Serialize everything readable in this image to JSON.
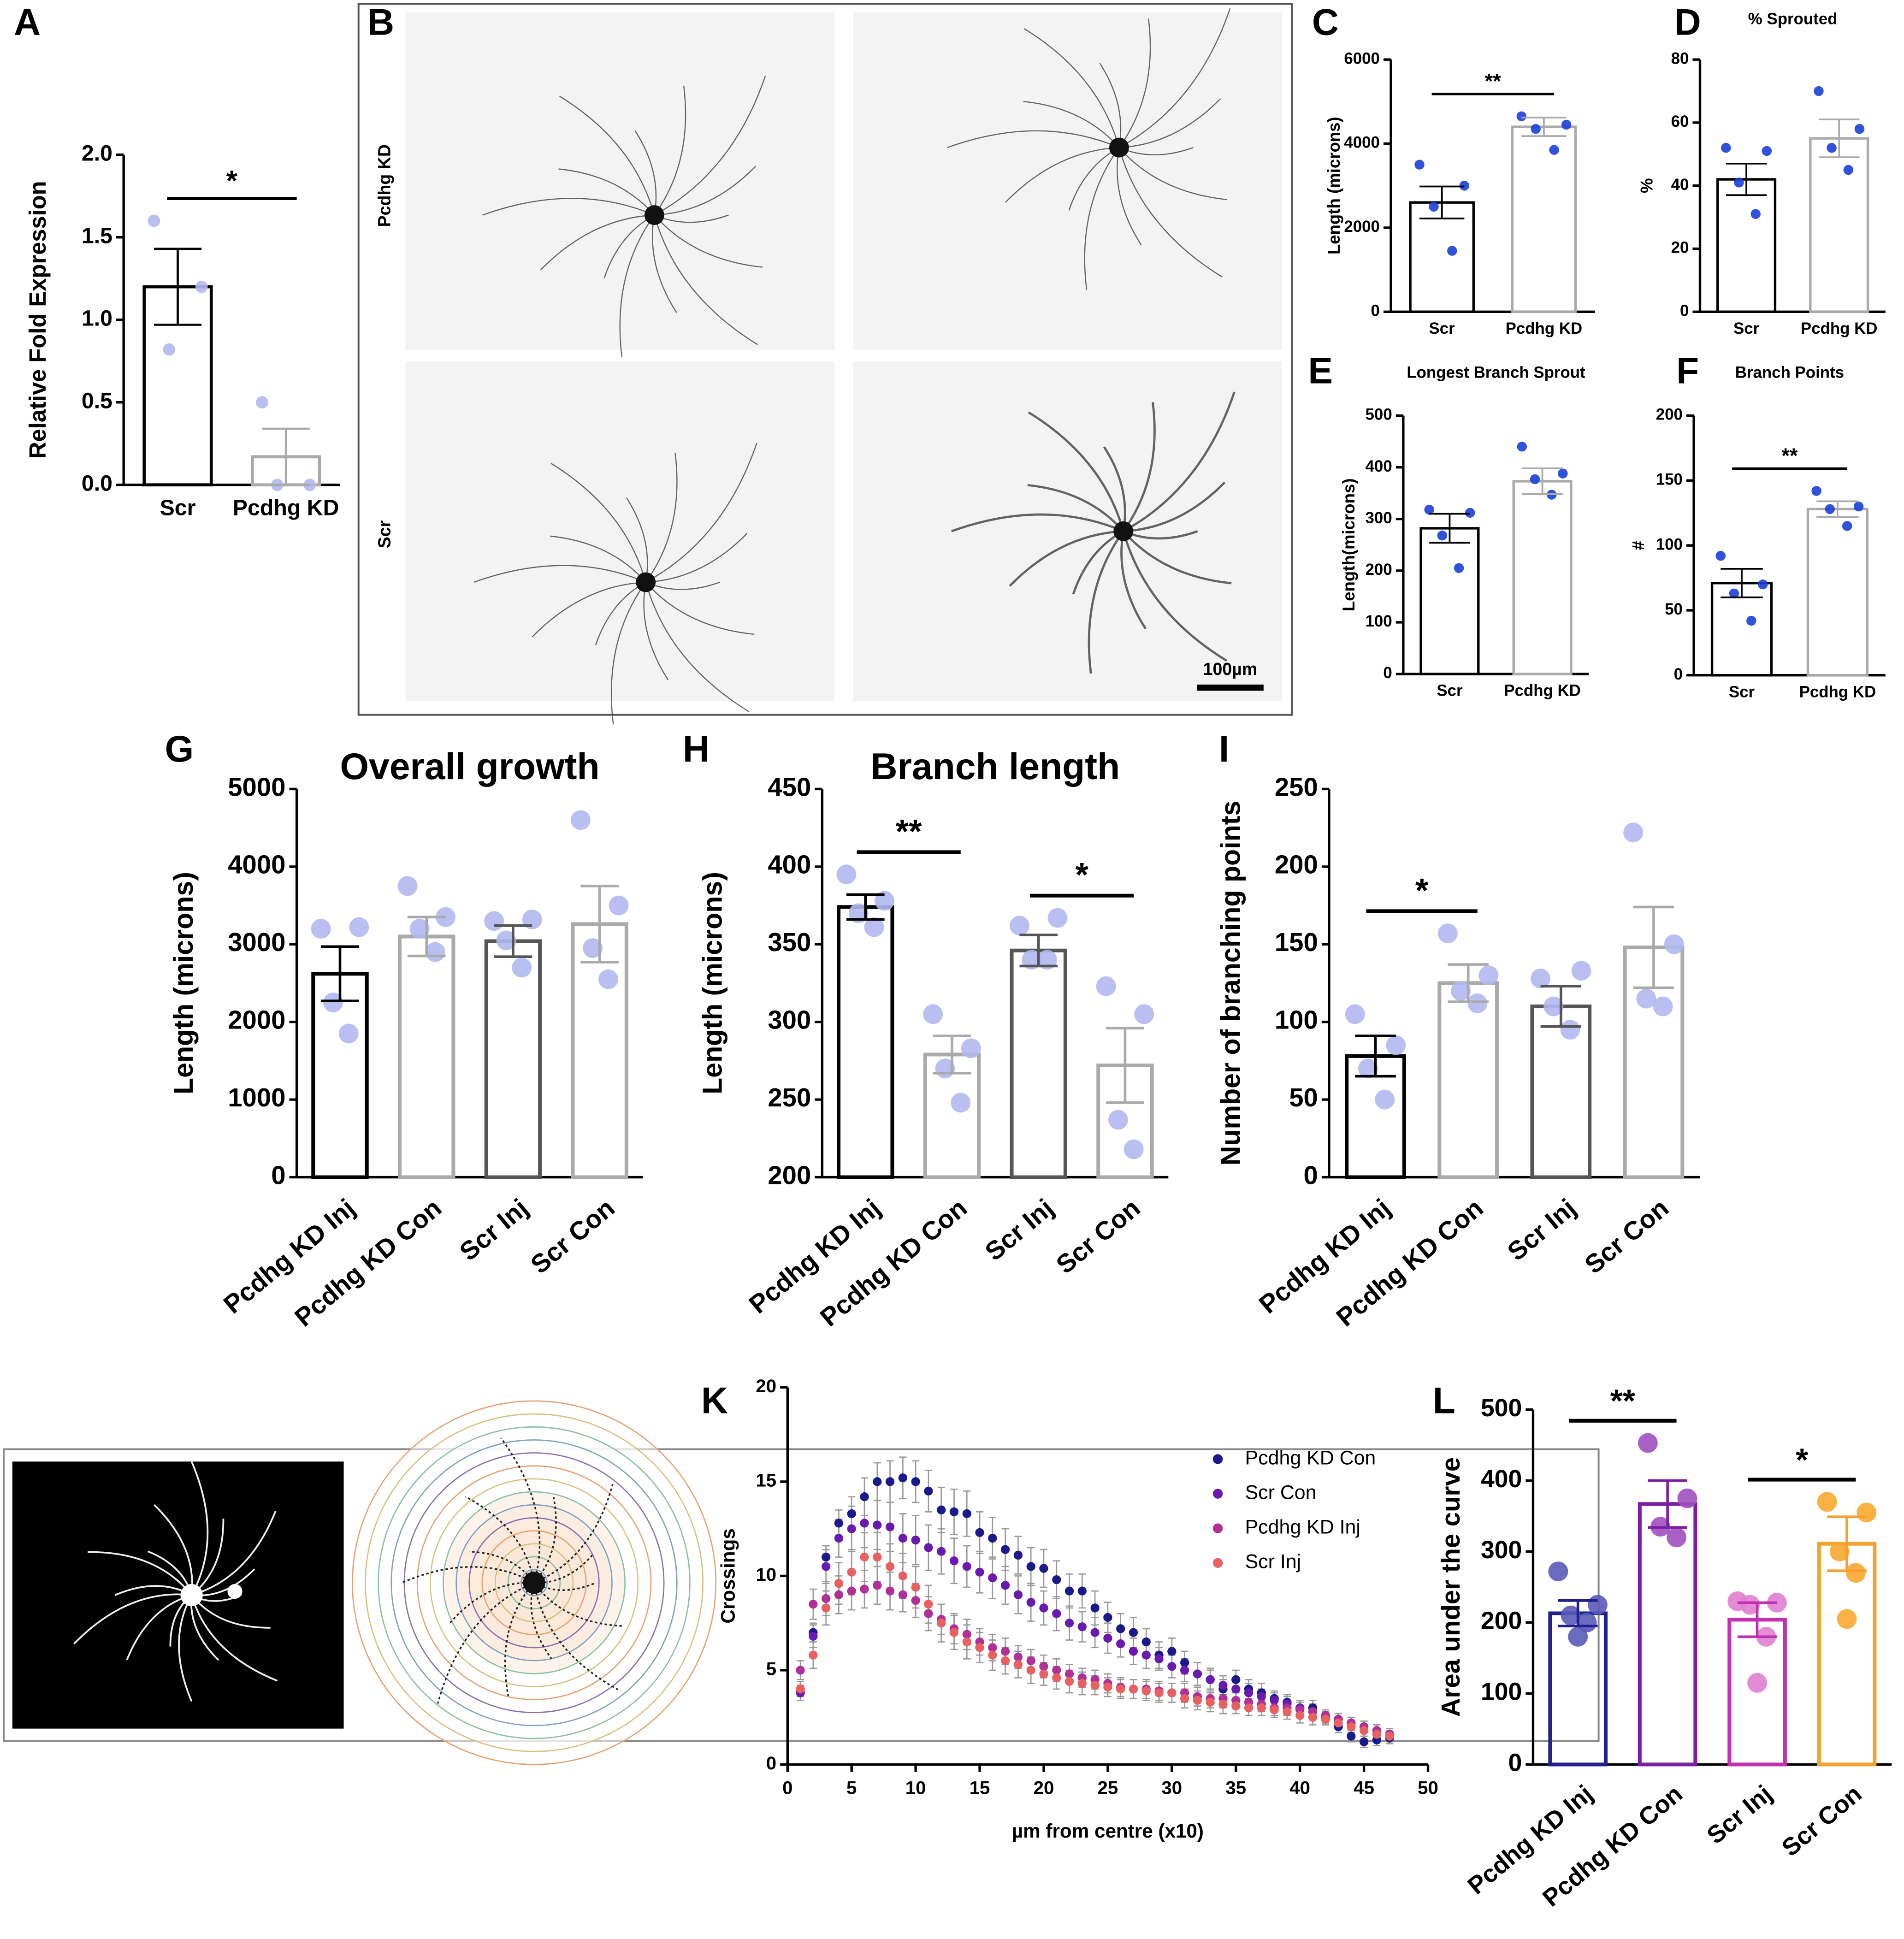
{
  "chart_data": [
    {
      "type": "bar",
      "panel": "A",
      "ylabel": "Relative Fold Expression",
      "categories": [
        "Scr",
        "Pcdhg KD"
      ],
      "values": [
        1.2,
        0.17
      ],
      "errors": [
        0.23,
        0.17
      ],
      "points": [
        [
          1.6,
          1.2,
          0.82
        ],
        [
          0.5,
          0.0,
          0.0
        ]
      ],
      "colors": [
        "#000000",
        "#aaaaaa"
      ],
      "point_colors": [
        "#b3b8f0",
        "#b3b8f0"
      ],
      "ylim": [
        0,
        2
      ],
      "yticks": [
        {
          "value": 0,
          "label": "0.0"
        },
        0.5,
        {
          "value": 1,
          "label": "1.0"
        },
        1.5,
        {
          "value": 2,
          "label": "2.0"
        }
      ],
      "significance": [
        {
          "label": "*",
          "bars": [
            0,
            1
          ]
        }
      ]
    },
    {
      "type": "image",
      "panel": "B",
      "labels": [
        "Pcdhg KD",
        "Scr"
      ],
      "scale_bar": "100µm"
    },
    {
      "type": "bar",
      "panel": "C",
      "ylabel": "Length (microns)",
      "categories": [
        "Scr",
        "Pcdhg KD"
      ],
      "values": [
        2600,
        4400
      ],
      "errors": [
        380,
        220
      ],
      "points": [
        [
          3500,
          3000,
          2500,
          1450
        ],
        [
          4650,
          4450,
          4350,
          3850
        ]
      ],
      "colors": [
        "#000000",
        "#aaaaaa"
      ],
      "point_colors": [
        "#1a3fd8",
        "#1a3fd8"
      ],
      "ylim": [
        0,
        6000
      ],
      "yticks": [
        0,
        2000,
        4000,
        6000
      ],
      "significance": [
        {
          "label": "**",
          "bars": [
            0,
            1
          ]
        }
      ]
    },
    {
      "type": "bar",
      "panel": "D",
      "title": "% Sprouted",
      "ylabel": "%",
      "categories": [
        "Scr",
        "Pcdhg KD"
      ],
      "values": [
        42,
        55
      ],
      "errors": [
        5,
        6
      ],
      "points": [
        [
          52,
          51,
          41,
          31
        ],
        [
          70,
          58,
          52,
          45
        ]
      ],
      "colors": [
        "#000000",
        "#aaaaaa"
      ],
      "point_colors": [
        "#1a3fd8",
        "#1a3fd8"
      ],
      "ylim": [
        0,
        80
      ],
      "yticks": [
        0,
        20,
        40,
        60,
        80
      ],
      "significance": []
    },
    {
      "type": "bar",
      "panel": "E",
      "title": "Longest Branch Sprout",
      "ylabel": "Length(microns)",
      "categories": [
        "Scr",
        "Pcdhg KD"
      ],
      "values": [
        282,
        373
      ],
      "errors": [
        28,
        25
      ],
      "points": [
        [
          318,
          312,
          268,
          205
        ],
        [
          440,
          388,
          377,
          347
        ]
      ],
      "colors": [
        "#000000",
        "#aaaaaa"
      ],
      "point_colors": [
        "#1a3fd8",
        "#1a3fd8"
      ],
      "ylim": [
        0,
        500
      ],
      "yticks": [
        0,
        100,
        200,
        300,
        400,
        500
      ],
      "significance": []
    },
    {
      "type": "bar",
      "panel": "F",
      "title": "Branch Points",
      "ylabel": "#",
      "categories": [
        "Scr",
        "Pcdhg KD"
      ],
      "values": [
        71,
        128
      ],
      "errors": [
        11,
        6
      ],
      "points": [
        [
          92,
          70,
          63,
          42
        ],
        [
          142,
          130,
          128,
          115
        ]
      ],
      "colors": [
        "#000000",
        "#aaaaaa"
      ],
      "point_colors": [
        "#1a3fd8",
        "#1a3fd8"
      ],
      "ylim": [
        0,
        200
      ],
      "yticks": [
        0,
        50,
        100,
        150,
        200
      ],
      "significance": [
        {
          "label": "**",
          "bars": [
            0,
            1
          ]
        }
      ]
    },
    {
      "type": "bar",
      "panel": "G",
      "title": "Overall growth",
      "ylabel": "Length (microns)",
      "categories": [
        "Pcdhg KD Inj",
        "Pcdhg KD Con",
        "Scr Inj",
        "Scr Con"
      ],
      "values": [
        2620,
        3100,
        3040,
        3260
      ],
      "errors": [
        350,
        250,
        200,
        490
      ],
      "points": [
        [
          3200,
          3220,
          2250,
          1850
        ],
        [
          3750,
          3350,
          3200,
          2900
        ],
        [
          3300,
          3320,
          3050,
          2700
        ],
        [
          4600,
          3500,
          2950,
          2550
        ]
      ],
      "colors": [
        "#000000",
        "#aaaaaa",
        "#555555",
        "#aaaaaa"
      ],
      "point_colors": [
        "#b3b8f0",
        "#b3b8f0",
        "#b3b8f0",
        "#b3b8f0"
      ],
      "ylim": [
        0,
        5000
      ],
      "yticks": [
        0,
        1000,
        2000,
        3000,
        4000,
        5000
      ],
      "rotate_labels": true,
      "significance": []
    },
    {
      "type": "bar",
      "panel": "H",
      "title": "Branch length",
      "ylabel": "Length (microns)",
      "categories": [
        "Pcdhg KD Inj",
        "Pcdhg KD Con",
        "Scr Inj",
        "Scr Con"
      ],
      "values": [
        374,
        279,
        346,
        272
      ],
      "errors": [
        8,
        12,
        10,
        24
      ],
      "points": [
        [
          395,
          378,
          370,
          361
        ],
        [
          305,
          283,
          270,
          248
        ],
        [
          362,
          367,
          340,
          340
        ],
        [
          323,
          305,
          237,
          218
        ]
      ],
      "colors": [
        "#000000",
        "#aaaaaa",
        "#555555",
        "#aaaaaa"
      ],
      "point_colors": [
        "#b3b8f0",
        "#b3b8f0",
        "#b3b8f0",
        "#b3b8f0"
      ],
      "ylim": [
        200,
        450
      ],
      "yticks": [
        200,
        250,
        300,
        350,
        400,
        450
      ],
      "rotate_labels": true,
      "significance": [
        {
          "label": "**",
          "bars": [
            0,
            1
          ]
        },
        {
          "label": "*",
          "bars": [
            2,
            3
          ]
        }
      ]
    },
    {
      "type": "bar",
      "panel": "I",
      "ylabel": "Number of branching points",
      "categories": [
        "Pcdhg KD Inj",
        "Pcdhg KD Con",
        "Scr Inj",
        "Scr Con"
      ],
      "values": [
        78,
        125,
        110,
        148
      ],
      "errors": [
        13,
        12,
        13,
        26
      ],
      "points": [
        [
          105,
          85,
          70,
          50
        ],
        [
          157,
          130,
          120,
          112
        ],
        [
          128,
          133,
          110,
          95
        ],
        [
          222,
          150,
          115,
          110
        ]
      ],
      "colors": [
        "#000000",
        "#aaaaaa",
        "#555555",
        "#aaaaaa"
      ],
      "point_colors": [
        "#b3b8f0",
        "#b3b8f0",
        "#b3b8f0",
        "#b3b8f0"
      ],
      "ylim": [
        0,
        250
      ],
      "yticks": [
        0,
        50,
        100,
        150,
        200,
        250
      ],
      "rotate_labels": true,
      "significance": [
        {
          "label": "*",
          "bars": [
            0,
            1
          ]
        }
      ]
    },
    {
      "type": "image",
      "panel": "J"
    },
    {
      "type": "scatter",
      "panel": "K",
      "xlabel": "µm from centre (x10)",
      "ylabel": "Crossings",
      "x": [
        1,
        2,
        3,
        4,
        5,
        6,
        7,
        8,
        9,
        10,
        11,
        12,
        13,
        14,
        15,
        16,
        17,
        18,
        19,
        20,
        21,
        22,
        23,
        24,
        25,
        26,
        27,
        28,
        29,
        30,
        31,
        32,
        33,
        34,
        35,
        36,
        37,
        38,
        39,
        40,
        41,
        42,
        43,
        44,
        45,
        46,
        47
      ],
      "xlim": [
        0,
        50
      ],
      "xticks": [
        0,
        5,
        10,
        15,
        20,
        25,
        30,
        35,
        40,
        45,
        50
      ],
      "ylim": [
        0,
        20
      ],
      "yticks": [
        0,
        5,
        10,
        15,
        20
      ],
      "legend": "upper right",
      "series": [
        {
          "name": "Pcdhg KD Con",
          "color": "#1a1a8c",
          "values": [
            4,
            7,
            11,
            12.8,
            13.3,
            14.2,
            15,
            15,
            15.2,
            15,
            14.5,
            13.5,
            13.4,
            13.3,
            12.3,
            12,
            11.4,
            11.1,
            10.5,
            10.4,
            9.8,
            9.2,
            9.2,
            8.3,
            7.8,
            7.2,
            7,
            6.5,
            5.8,
            6,
            5.4,
            4.8,
            4.5,
            4,
            4.5,
            4,
            3.8,
            3.5,
            3.3,
            3,
            3,
            2.5,
            2,
            1.5,
            1.2,
            1.3,
            1.4
          ],
          "errors": [
            0.4,
            0.5,
            0.6,
            0.7,
            0.9,
            1,
            1,
            1.1,
            1.1,
            1.1,
            1.1,
            1.2,
            1.2,
            1.2,
            1.1,
            1.1,
            1.1,
            1,
            1,
            1,
            1,
            0.9,
            0.9,
            0.9,
            0.8,
            0.8,
            0.8,
            0.7,
            0.7,
            0.7,
            0.6,
            0.6,
            0.6,
            0.5,
            0.5,
            0.5,
            0.5,
            0.4,
            0.4,
            0.4,
            0.4,
            0.3,
            0.3,
            0.3,
            0.3,
            0.3,
            0.3
          ]
        },
        {
          "name": "Scr Con",
          "color": "#6a1ab0",
          "values": [
            3.8,
            6.8,
            10.5,
            12,
            12.5,
            12.8,
            12.7,
            12.6,
            12,
            11.9,
            11.5,
            11.3,
            10.8,
            10.5,
            10.2,
            9.9,
            9.5,
            9,
            8.6,
            8.3,
            8,
            7.5,
            7.3,
            7,
            6.7,
            6.4,
            6,
            5.8,
            5.6,
            5.2,
            5,
            4.8,
            4.5,
            4.2,
            4,
            3.8,
            3.6,
            3.4,
            3.2,
            3,
            2.8,
            2.6,
            2.4,
            2.2,
            2,
            1.8,
            1.6
          ],
          "errors": [
            0.4,
            0.6,
            0.9,
            1,
            1.2,
            1.3,
            1.3,
            1.3,
            1.3,
            1.3,
            1.2,
            1.2,
            1.2,
            1.1,
            1.1,
            1.1,
            1,
            1,
            1,
            0.9,
            0.9,
            0.9,
            0.8,
            0.8,
            0.8,
            0.7,
            0.7,
            0.7,
            0.6,
            0.6,
            0.6,
            0.6,
            0.5,
            0.5,
            0.5,
            0.5,
            0.4,
            0.4,
            0.4,
            0.4,
            0.4,
            0.3,
            0.3,
            0.3,
            0.3,
            0.3,
            0.3
          ]
        },
        {
          "name": "Pcdhg KD Inj",
          "color": "#b0309a",
          "values": [
            5,
            8.5,
            8.8,
            9,
            9.2,
            9.3,
            9.5,
            9.2,
            9,
            8.7,
            8,
            7.7,
            7.2,
            6.9,
            6.5,
            6.2,
            6,
            5.7,
            5.5,
            5.2,
            5,
            4.8,
            4.6,
            4.5,
            4.3,
            4.1,
            4,
            4,
            3.9,
            3.8,
            3.8,
            3.6,
            3.5,
            3.5,
            3.4,
            3.3,
            3.2,
            3,
            3,
            2.9,
            2.8,
            2.6,
            2.4,
            2.2,
            2,
            1.8,
            1.6
          ],
          "errors": [
            0.5,
            0.8,
            0.9,
            1,
            1,
            1,
            1,
            1,
            0.9,
            0.9,
            0.9,
            0.8,
            0.8,
            0.8,
            0.7,
            0.7,
            0.7,
            0.6,
            0.6,
            0.6,
            0.6,
            0.5,
            0.5,
            0.5,
            0.5,
            0.5,
            0.5,
            0.5,
            0.5,
            0.5,
            0.5,
            0.5,
            0.5,
            0.5,
            0.4,
            0.4,
            0.4,
            0.4,
            0.4,
            0.4,
            0.4,
            0.3,
            0.3,
            0.3,
            0.3,
            0.3,
            0.3
          ]
        },
        {
          "name": "Scr Inj",
          "color": "#e86060",
          "values": [
            4,
            5.8,
            8.3,
            9.6,
            10.2,
            11,
            11,
            10.5,
            10,
            9.4,
            8.5,
            7.5,
            7,
            6.5,
            6.2,
            5.8,
            5.5,
            5.3,
            5,
            4.8,
            4.6,
            4.4,
            4.3,
            4.2,
            4.1,
            4,
            4,
            3.9,
            3.8,
            3.8,
            3.5,
            3.4,
            3.3,
            3.2,
            3.1,
            3,
            3,
            2.9,
            2.8,
            2.6,
            2.5,
            2.4,
            2.2,
            2,
            1.8,
            1.6,
            1.5
          ],
          "errors": [
            0.4,
            0.7,
            0.9,
            1.1,
            1.2,
            1.3,
            1.3,
            1.2,
            1.2,
            1.1,
            1,
            1,
            0.9,
            0.9,
            0.8,
            0.8,
            0.7,
            0.7,
            0.7,
            0.6,
            0.6,
            0.6,
            0.6,
            0.5,
            0.5,
            0.5,
            0.5,
            0.5,
            0.5,
            0.5,
            0.5,
            0.5,
            0.5,
            0.5,
            0.4,
            0.4,
            0.4,
            0.4,
            0.4,
            0.4,
            0.4,
            0.3,
            0.3,
            0.3,
            0.3,
            0.3,
            0.3
          ]
        }
      ]
    },
    {
      "type": "bar",
      "panel": "L",
      "ylabel": "Area under the curve",
      "categories": [
        "Pcdhg KD Inj",
        "Pcdhg KD Con",
        "Scr Inj",
        "Scr Con"
      ],
      "values": [
        213,
        367,
        204,
        311
      ],
      "errors": [
        18,
        33,
        24,
        38
      ],
      "points": [
        [
          272,
          225,
          210,
          200,
          180
        ],
        [
          453,
          375,
          335,
          320
        ],
        [
          230,
          228,
          225,
          180,
          115
        ],
        [
          370,
          355,
          300,
          270,
          205
        ]
      ],
      "colors": [
        "#1f1f8f",
        "#7b1fa2",
        "#c030b0",
        "#f5a030"
      ],
      "point_colors": [
        "#5a5ab8",
        "#a050c0",
        "#e080d0",
        "#f8a830"
      ],
      "ylim": [
        0,
        500
      ],
      "yticks": [
        0,
        100,
        200,
        300,
        400,
        500
      ],
      "rotate_labels": true,
      "significance": [
        {
          "label": "**",
          "bars": [
            0,
            1
          ]
        },
        {
          "label": "*",
          "bars": [
            2,
            3
          ]
        }
      ]
    }
  ]
}
